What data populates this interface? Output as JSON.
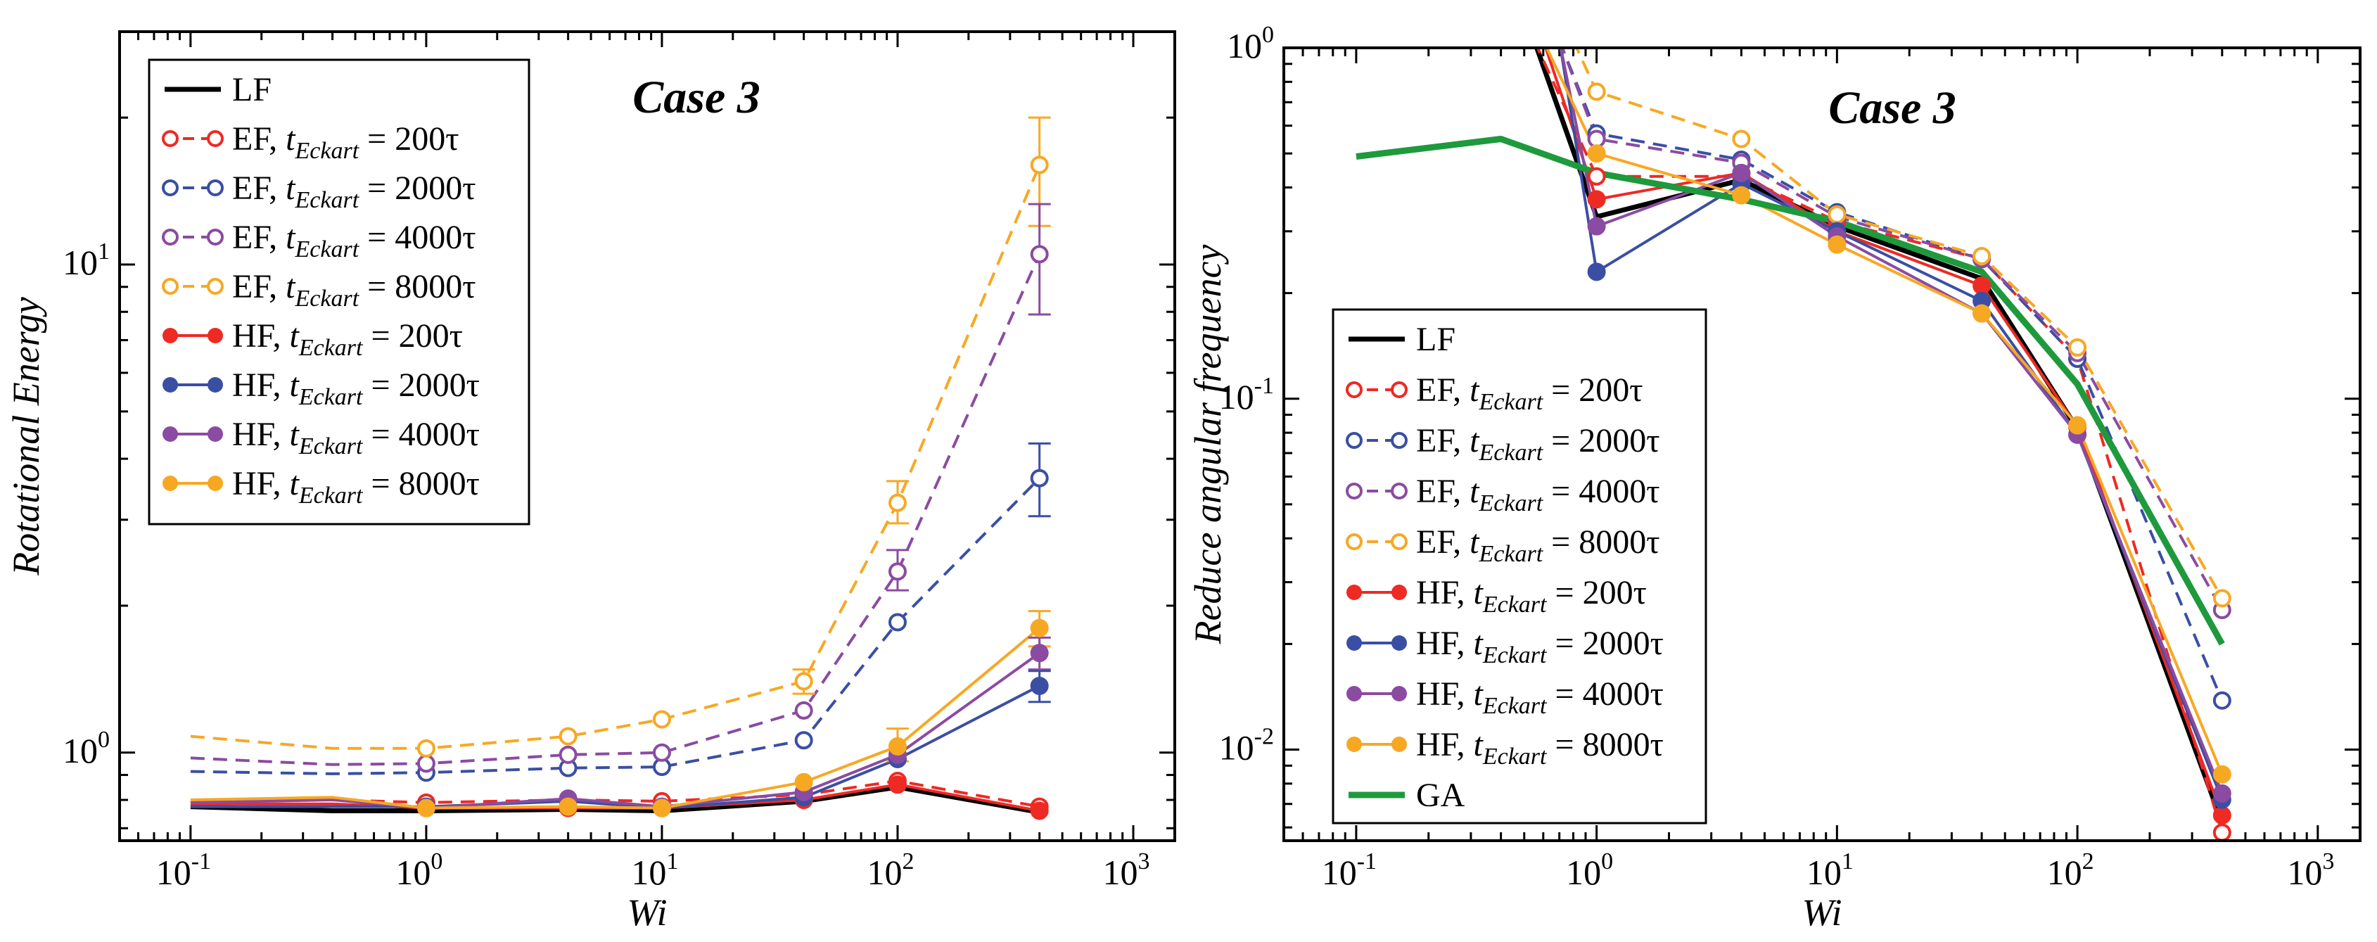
{
  "chart_data": [
    {
      "type": "line",
      "panel": "left",
      "title": "Case 3",
      "xlabel": "Wi",
      "ylabel": "Rotational Energy",
      "xscale": "log",
      "yscale": "log",
      "xlim": [
        0.05,
        1500
      ],
      "ylim": [
        0.66,
        30
      ],
      "xticks": [
        {
          "value": 0.1,
          "label": "10",
          "exp": "-1"
        },
        {
          "value": 1,
          "label": "10",
          "exp": "0"
        },
        {
          "value": 10,
          "label": "10",
          "exp": "1"
        },
        {
          "value": 100,
          "label": "10",
          "exp": "2"
        },
        {
          "value": 1000,
          "label": "10",
          "exp": "3"
        }
      ],
      "yticks": [
        {
          "value": 1,
          "label": "10",
          "exp": "0"
        },
        {
          "value": 10,
          "label": "10",
          "exp": "1"
        }
      ],
      "legend_position": "top-left",
      "x": [
        0.1,
        0.4,
        1,
        4,
        10,
        40,
        100,
        400
      ],
      "series": [
        {
          "name": "LF",
          "prefix": "LF",
          "sub": "",
          "suffix": "",
          "color": "#000000",
          "dashed": false,
          "marker": "none",
          "values": [
            0.775,
            0.76,
            0.76,
            0.765,
            0.76,
            0.795,
            0.85,
            0.755
          ]
        },
        {
          "name": "EF, t_Eckart = 200τ",
          "prefix": "EF, ",
          "sub": "Eckart",
          "suffix": " = 200τ",
          "color": "#ee2a24",
          "dashed": true,
          "marker": "open",
          "values": [
            0.8,
            0.8,
            0.79,
            0.8,
            0.795,
            0.82,
            0.875,
            0.775
          ]
        },
        {
          "name": "EF, t_Eckart = 2000τ",
          "prefix": "EF, ",
          "sub": "Eckart",
          "suffix": " = 2000τ",
          "color": "#3a4fa3",
          "dashed": true,
          "marker": "open",
          "values": [
            0.915,
            0.905,
            0.91,
            0.93,
            0.935,
            1.06,
            1.85,
            3.65
          ]
        },
        {
          "name": "EF, t_Eckart = 4000τ",
          "prefix": "EF, ",
          "sub": "Eckart",
          "suffix": " = 4000τ",
          "color": "#8b4ba2",
          "dashed": true,
          "marker": "open",
          "values": [
            0.975,
            0.945,
            0.95,
            0.99,
            1.0,
            1.22,
            2.35,
            10.5
          ]
        },
        {
          "name": "EF, t_Eckart = 8000τ",
          "prefix": "EF, ",
          "sub": "Eckart",
          "suffix": " = 8000τ",
          "color": "#f7a823",
          "dashed": true,
          "marker": "open",
          "values": [
            1.08,
            1.02,
            1.02,
            1.08,
            1.17,
            1.4,
            3.25,
            16.0
          ]
        },
        {
          "name": "HF, t_Eckart = 200τ",
          "prefix": "HF, ",
          "sub": "Eckart",
          "suffix": " = 200τ",
          "color": "#ee2a24",
          "dashed": false,
          "marker": "filled",
          "values": [
            0.785,
            0.785,
            0.77,
            0.77,
            0.77,
            0.8,
            0.86,
            0.76
          ]
        },
        {
          "name": "HF, t_Eckart = 2000τ",
          "prefix": "HF, ",
          "sub": "Eckart",
          "suffix": " = 2000τ",
          "color": "#3a4fa3",
          "dashed": false,
          "marker": "filled",
          "values": [
            0.775,
            0.775,
            0.775,
            0.795,
            0.77,
            0.81,
            0.97,
            1.37
          ]
        },
        {
          "name": "HF, t_Eckart = 4000τ",
          "prefix": "HF, ",
          "sub": "Eckart",
          "suffix": " = 4000τ",
          "color": "#8b4ba2",
          "dashed": false,
          "marker": "filled",
          "values": [
            0.79,
            0.8,
            0.77,
            0.805,
            0.775,
            0.83,
            0.99,
            1.6
          ]
        },
        {
          "name": "HF, t_Eckart = 8000τ",
          "prefix": "HF, ",
          "sub": "Eckart",
          "suffix": " = 8000τ",
          "color": "#f7a823",
          "dashed": false,
          "marker": "filled",
          "values": [
            0.8,
            0.81,
            0.77,
            0.775,
            0.77,
            0.87,
            1.03,
            1.8
          ]
        }
      ],
      "error_bars": [
        {
          "series": "EF, t_Eckart = 8000τ",
          "x": 40,
          "low": 1.32,
          "high": 1.48
        },
        {
          "series": "EF, t_Eckart = 8000τ",
          "x": 100,
          "low": 2.95,
          "high": 3.6
        },
        {
          "series": "EF, t_Eckart = 8000τ",
          "x": 400,
          "low": 12.0,
          "high": 20.0
        },
        {
          "series": "EF, t_Eckart = 4000τ",
          "x": 100,
          "low": 2.15,
          "high": 2.6
        },
        {
          "series": "EF, t_Eckart = 4000τ",
          "x": 400,
          "low": 7.9,
          "high": 13.3
        },
        {
          "series": "EF, t_Eckart = 2000τ",
          "x": 400,
          "low": 3.05,
          "high": 4.3
        },
        {
          "series": "HF, t_Eckart = 8000τ",
          "x": 400,
          "low": 1.65,
          "high": 1.95
        },
        {
          "series": "HF, t_Eckart = 8000τ",
          "x": 100,
          "low": 0.96,
          "high": 1.12
        },
        {
          "series": "HF, t_Eckart = 4000τ",
          "x": 400,
          "low": 1.48,
          "high": 1.72
        },
        {
          "series": "HF, t_Eckart = 2000τ",
          "x": 400,
          "low": 1.27,
          "high": 1.47
        }
      ]
    },
    {
      "type": "line",
      "panel": "right",
      "title": "Case 3",
      "xlabel": "Wi",
      "ylabel": "Reduce angular frequency",
      "xscale": "log",
      "yscale": "log",
      "xlim": [
        0.05,
        1500
      ],
      "ylim": [
        0.0055,
        1.0
      ],
      "xticks": [
        {
          "value": 0.1,
          "label": "10",
          "exp": "-1"
        },
        {
          "value": 1,
          "label": "10",
          "exp": "0"
        },
        {
          "value": 10,
          "label": "10",
          "exp": "1"
        },
        {
          "value": 100,
          "label": "10",
          "exp": "2"
        },
        {
          "value": 1000,
          "label": "10",
          "exp": "3"
        }
      ],
      "yticks": [
        {
          "value": 0.01,
          "label": "10",
          "exp": "-2"
        },
        {
          "value": 0.1,
          "label": "10",
          "exp": "-1"
        },
        {
          "value": 1,
          "label": "10",
          "exp": "0"
        }
      ],
      "legend_position": "bottom-left",
      "x": [
        0.1,
        0.4,
        1,
        4,
        10,
        40,
        100,
        400
      ],
      "series": [
        {
          "name": "LF",
          "prefix": "LF",
          "sub": "",
          "suffix": "",
          "color": "#000000",
          "dashed": false,
          "marker": "none",
          "x": [
            0.55,
            1,
            4,
            10,
            40,
            100,
            400
          ],
          "values": [
            1.05,
            0.33,
            0.42,
            0.31,
            0.22,
            0.082,
            0.0062
          ]
        },
        {
          "name": "EF, t_Eckart = 200τ",
          "prefix": "EF, ",
          "sub": "Eckart",
          "suffix": " = 200τ",
          "color": "#ee2a24",
          "dashed": true,
          "marker": "open",
          "x": [
            0.55,
            1,
            4,
            10,
            40,
            100,
            400
          ],
          "values": [
            1.05,
            0.43,
            0.43,
            0.32,
            0.25,
            0.13,
            0.0058
          ]
        },
        {
          "name": "EF, t_Eckart = 2000τ",
          "prefix": "EF, ",
          "sub": "Eckart",
          "suffix": " = 2000τ",
          "color": "#3a4fa3",
          "dashed": true,
          "marker": "open",
          "x": [
            0.7,
            1,
            4,
            10,
            40,
            100,
            400
          ],
          "values": [
            1.05,
            0.57,
            0.48,
            0.34,
            0.25,
            0.13,
            0.0138
          ]
        },
        {
          "name": "EF, t_Eckart = 4000τ",
          "prefix": "EF, ",
          "sub": "Eckart",
          "suffix": " = 4000τ",
          "color": "#8b4ba2",
          "dashed": true,
          "marker": "open",
          "x": [
            0.7,
            1,
            4,
            10,
            40,
            100,
            400
          ],
          "values": [
            1.05,
            0.55,
            0.47,
            0.33,
            0.25,
            0.135,
            0.025
          ]
        },
        {
          "name": "EF, t_Eckart = 8000τ",
          "prefix": "EF, ",
          "sub": "Eckart",
          "suffix": " = 8000τ",
          "color": "#f7a823",
          "dashed": true,
          "marker": "open",
          "x": [
            0.8,
            1,
            4,
            10,
            40,
            100,
            400
          ],
          "values": [
            1.05,
            0.75,
            0.55,
            0.335,
            0.255,
            0.14,
            0.027
          ]
        },
        {
          "name": "HF, t_Eckart = 200τ",
          "prefix": "HF, ",
          "sub": "Eckart",
          "suffix": " = 200τ",
          "color": "#ee2a24",
          "dashed": false,
          "marker": "filled",
          "x": [
            0.6,
            1,
            4,
            10,
            40,
            100,
            400
          ],
          "values": [
            1.05,
            0.37,
            0.44,
            0.3,
            0.21,
            0.083,
            0.0065
          ]
        },
        {
          "name": "HF, t_Eckart = 2000τ",
          "prefix": "HF, ",
          "sub": "Eckart",
          "suffix": " = 2000τ",
          "color": "#3a4fa3",
          "dashed": false,
          "marker": "filled",
          "x": [
            0.7,
            1,
            4,
            10,
            40,
            100,
            400
          ],
          "values": [
            1.05,
            0.23,
            0.41,
            0.3,
            0.19,
            0.079,
            0.0072
          ]
        },
        {
          "name": "HF, t_Eckart = 4000τ",
          "prefix": "HF, ",
          "sub": "Eckart",
          "suffix": " = 4000τ",
          "color": "#8b4ba2",
          "dashed": false,
          "marker": "filled",
          "x": [
            0.7,
            1,
            4,
            10,
            40,
            100,
            400
          ],
          "values": [
            1.05,
            0.31,
            0.44,
            0.29,
            0.175,
            0.079,
            0.0075
          ]
        },
        {
          "name": "HF, t_Eckart = 8000τ",
          "prefix": "HF, ",
          "sub": "Eckart",
          "suffix": " = 8000τ",
          "color": "#f7a823",
          "dashed": false,
          "marker": "filled",
          "x": [
            0.6,
            1,
            4,
            10,
            40,
            100,
            400
          ],
          "values": [
            1.05,
            0.5,
            0.38,
            0.275,
            0.175,
            0.084,
            0.0085
          ]
        },
        {
          "name": "GA",
          "prefix": "GA",
          "sub": "",
          "suffix": "",
          "color": "#1e9a3c",
          "dashed": false,
          "marker": "none",
          "thick": true,
          "x": [
            0.1,
            0.4,
            1,
            4,
            10,
            40,
            100,
            400
          ],
          "values": [
            0.49,
            0.55,
            0.44,
            0.37,
            0.32,
            0.23,
            0.11,
            0.02
          ]
        }
      ]
    }
  ]
}
